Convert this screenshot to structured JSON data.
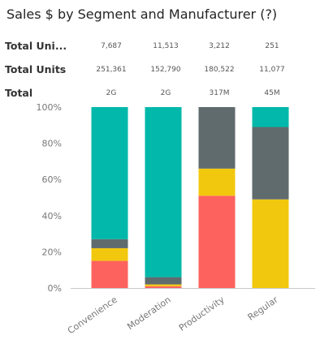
{
  "title": "Sales $ by Segment and Manufacturer (?)",
  "table": {
    "rows": [
      {
        "label": "Total Uni...",
        "values": [
          "7,687",
          "11,513",
          "3,212",
          "251"
        ]
      },
      {
        "label": "Total Units",
        "values": [
          "251,361",
          "152,790",
          "180,522",
          "11,077"
        ]
      },
      {
        "label": "Total",
        "values": [
          "2G",
          "2G",
          "317M",
          "45M"
        ]
      }
    ]
  },
  "colors": {
    "teal": "#01B8AA",
    "slate": "#5F6B6D",
    "yellow": "#F2C80F",
    "red": "#FD625E",
    "axis": "#c8c8c8",
    "text": "#777777"
  },
  "chart_data": {
    "type": "bar",
    "stacked": "100%",
    "title": "Sales $ by Segment and Manufacturer (?)",
    "xlabel": "",
    "ylabel": "",
    "ylim": [
      0,
      100
    ],
    "yticks": [
      "0%",
      "20%",
      "40%",
      "60%",
      "80%",
      "100%"
    ],
    "categories": [
      "Convenience",
      "Moderation",
      "Productivity",
      "Regular"
    ],
    "series": [
      {
        "color": "#FD625E",
        "values": [
          15,
          1,
          51,
          0
        ]
      },
      {
        "color": "#F2C80F",
        "values": [
          7,
          1,
          15,
          49
        ]
      },
      {
        "color": "#5F6B6D",
        "values": [
          5,
          4,
          34,
          40
        ]
      },
      {
        "color": "#01B8AA",
        "values": [
          73,
          94,
          0,
          11
        ]
      }
    ],
    "grid": false,
    "legend": "none"
  }
}
